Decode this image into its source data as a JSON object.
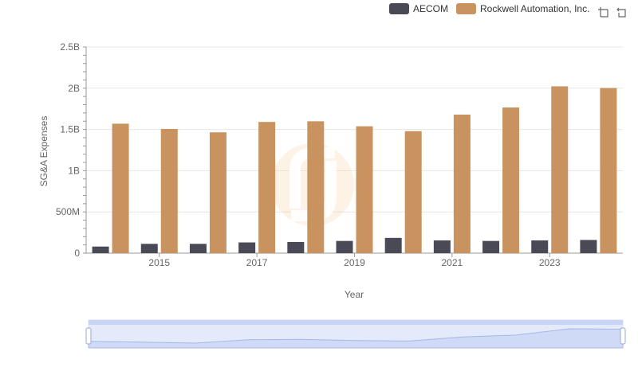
{
  "chart_data": {
    "type": "bar",
    "xlabel": "Year",
    "ylabel": "SG&A Expenses",
    "ylim": [
      0,
      2500000000
    ],
    "y_ticks": [
      {
        "value": 0,
        "label": "0"
      },
      {
        "value": 500000000,
        "label": "500M"
      },
      {
        "value": 1000000000,
        "label": "1B"
      },
      {
        "value": 1500000000,
        "label": "1.5B"
      },
      {
        "value": 2000000000,
        "label": "2B"
      },
      {
        "value": 2500000000,
        "label": "2.5B"
      }
    ],
    "categories": [
      "2014",
      "2015",
      "2016",
      "2017",
      "2018",
      "2019",
      "2020",
      "2021",
      "2022",
      "2023",
      "2024"
    ],
    "x_tick_labels": [
      "2015",
      "2017",
      "2019",
      "2021",
      "2023"
    ],
    "series": [
      {
        "name": "AECOM",
        "color": "#4a4a56",
        "values": [
          80000000,
          113000000,
          113000000,
          130000000,
          135000000,
          148000000,
          185000000,
          155000000,
          148000000,
          155000000,
          160000000
        ]
      },
      {
        "name": "Rockwell Automation, Inc.",
        "color": "#c9935f",
        "values": [
          1570000000,
          1506000000,
          1465000000,
          1591000000,
          1599000000,
          1538000000,
          1479000000,
          1680000000,
          1766000000,
          2023000000,
          2002000000
        ]
      }
    ],
    "grid": true,
    "legend_position": "top-right"
  },
  "toolbar": {
    "zoom_icon": "zoom-select-icon",
    "restore_icon": "restore-icon"
  },
  "colors": {
    "grid": "#e6e6e6",
    "axis_text": "#666666",
    "slider_fill": "#d9e3fb",
    "slider_line": "#a7b7e6"
  }
}
